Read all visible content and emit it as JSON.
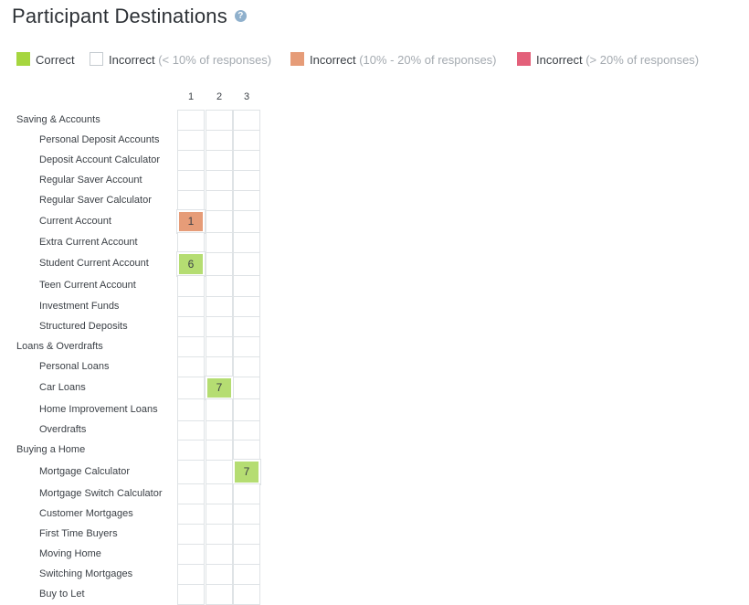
{
  "page": {
    "title": "Participant Destinations",
    "help_icon": "question-icon"
  },
  "legend": [
    {
      "label": "Correct",
      "note": "",
      "color": "#a6d63f",
      "icon": "correct-swatch"
    },
    {
      "label": "Incorrect",
      "note": "(< 10% of responses)",
      "color": "#ffffff",
      "icon": "incorrect-low-swatch"
    },
    {
      "label": "Incorrect",
      "note": "(10% - 20% of responses)",
      "color": "#e69c78",
      "icon": "incorrect-mid-swatch"
    },
    {
      "label": "Incorrect",
      "note": "(> 20% of responses)",
      "color": "#e3607a",
      "icon": "incorrect-high-swatch"
    }
  ],
  "columns": [
    "1",
    "2",
    "3"
  ],
  "rows": [
    {
      "label": "Saving & Accounts",
      "level": 0,
      "cells": [
        "",
        "",
        ""
      ]
    },
    {
      "label": "Personal Deposit Accounts",
      "level": 1,
      "cells": [
        "",
        "",
        ""
      ]
    },
    {
      "label": "Deposit Account Calculator",
      "level": 1,
      "cells": [
        "",
        "",
        ""
      ]
    },
    {
      "label": "Regular Saver Account",
      "level": 1,
      "cells": [
        "",
        "",
        ""
      ]
    },
    {
      "label": "Regular Saver Calculator",
      "level": 1,
      "cells": [
        "",
        "",
        ""
      ]
    },
    {
      "label": "Current Account",
      "level": 1,
      "cells": [
        "1",
        "",
        ""
      ],
      "status": [
        "incorrect-mid",
        "",
        ""
      ]
    },
    {
      "label": "Extra Current Account",
      "level": 1,
      "cells": [
        "",
        "",
        ""
      ]
    },
    {
      "label": "Student Current Account",
      "level": 1,
      "cells": [
        "6",
        "",
        ""
      ],
      "status": [
        "correct",
        "",
        ""
      ]
    },
    {
      "label": "Teen Current Account",
      "level": 1,
      "cells": [
        "",
        "",
        ""
      ]
    },
    {
      "label": "Investment Funds",
      "level": 1,
      "cells": [
        "",
        "",
        ""
      ]
    },
    {
      "label": "Structured Deposits",
      "level": 1,
      "cells": [
        "",
        "",
        ""
      ]
    },
    {
      "label": "Loans & Overdrafts",
      "level": 0,
      "cells": [
        "",
        "",
        ""
      ]
    },
    {
      "label": "Personal Loans",
      "level": 1,
      "cells": [
        "",
        "",
        ""
      ]
    },
    {
      "label": "Car Loans",
      "level": 1,
      "cells": [
        "",
        "7",
        ""
      ],
      "status": [
        "",
        "correct",
        ""
      ]
    },
    {
      "label": "Home Improvement Loans",
      "level": 1,
      "cells": [
        "",
        "",
        ""
      ]
    },
    {
      "label": "Overdrafts",
      "level": 1,
      "cells": [
        "",
        "",
        ""
      ]
    },
    {
      "label": "Buying a Home",
      "level": 0,
      "cells": [
        "",
        "",
        ""
      ]
    },
    {
      "label": "Mortgage Calculator",
      "level": 1,
      "cells": [
        "",
        "",
        "7"
      ],
      "status": [
        "",
        "",
        "correct"
      ]
    },
    {
      "label": "Mortgage Switch Calculator",
      "level": 1,
      "cells": [
        "",
        "",
        ""
      ]
    },
    {
      "label": "Customer Mortgages",
      "level": 1,
      "cells": [
        "",
        "",
        ""
      ]
    },
    {
      "label": "First Time Buyers",
      "level": 1,
      "cells": [
        "",
        "",
        ""
      ]
    },
    {
      "label": "Moving Home",
      "level": 1,
      "cells": [
        "",
        "",
        ""
      ]
    },
    {
      "label": "Switching Mortgages",
      "level": 1,
      "cells": [
        "",
        "",
        ""
      ]
    },
    {
      "label": "Buy to Let",
      "level": 1,
      "cells": [
        "",
        "",
        ""
      ]
    }
  ]
}
